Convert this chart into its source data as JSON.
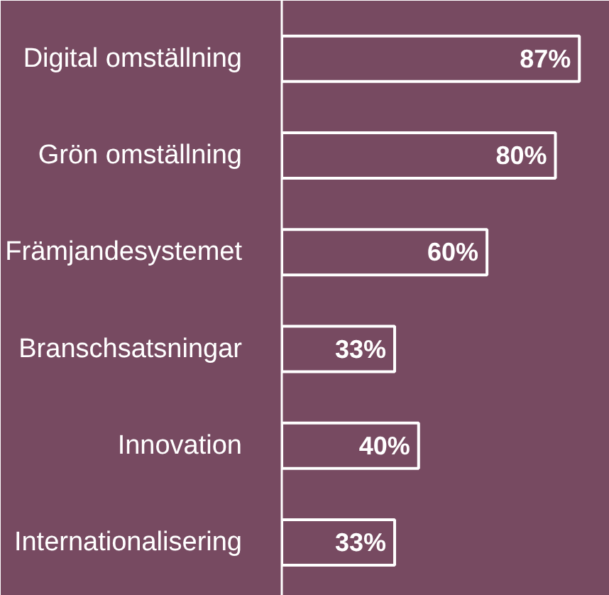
{
  "chart_data": {
    "type": "bar",
    "orientation": "horizontal",
    "categories": [
      "Digital omställning",
      "Grön omställning",
      "Främjandesystemet",
      "Branschsatsningar",
      "Innovation",
      "Internationalisering"
    ],
    "values": [
      87,
      80,
      60,
      33,
      40,
      33
    ],
    "value_labels": [
      "87%",
      "80%",
      "60%",
      "33%",
      "40%",
      "33%"
    ],
    "color": "#ffffff"
  }
}
